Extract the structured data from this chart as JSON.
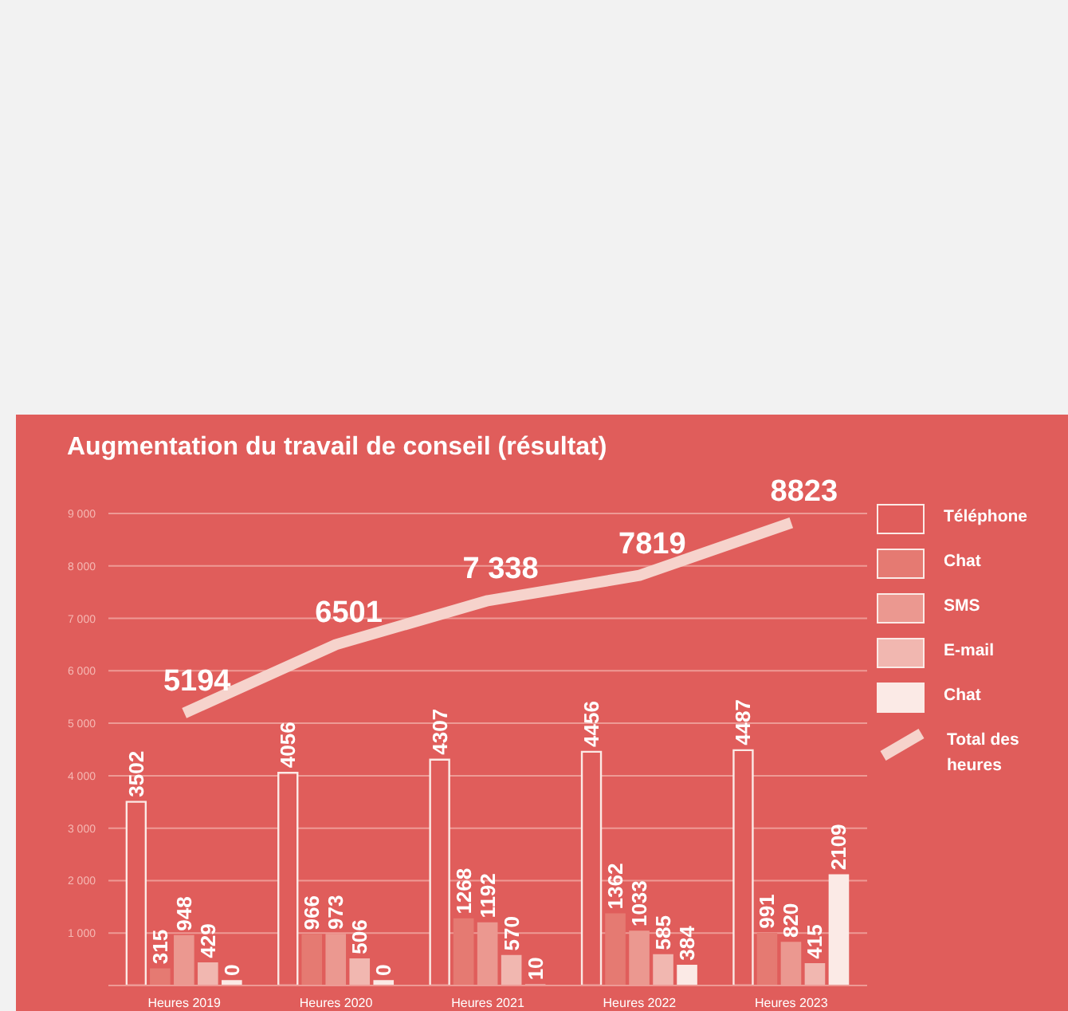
{
  "chart_data": {
    "type": "bar",
    "title": "Augmentation du travail de conseil (résultat)",
    "categories": [
      "Heures 2019",
      "Heures 2020",
      "Heures 2021",
      "Heures 2022",
      "Heures 2023"
    ],
    "series": [
      {
        "name": "Téléphone",
        "color": "#e05d5b",
        "values": [
          3502,
          4056,
          4307,
          4456,
          4487
        ],
        "value_labels": [
          "3502",
          "4056",
          "4307",
          "4456",
          "4487"
        ]
      },
      {
        "name": "Chat",
        "color": "#e57a72",
        "values": [
          315,
          966,
          1268,
          1362,
          991
        ],
        "value_labels": [
          "315",
          "966",
          "1268",
          "1362",
          "991"
        ]
      },
      {
        "name": "SMS",
        "color": "#eb9890",
        "values": [
          948,
          973,
          1192,
          1033,
          820
        ],
        "value_labels": [
          "948",
          "973",
          "1192",
          "1033",
          "820"
        ]
      },
      {
        "name": "E-mail",
        "color": "#f1b7b0",
        "values": [
          429,
          506,
          570,
          585,
          415
        ],
        "value_labels": [
          "429",
          "506",
          "570",
          "585",
          "415"
        ]
      },
      {
        "name": "Chat",
        "color": "#fbeae6",
        "values": [
          0,
          0,
          10,
          384,
          2109
        ],
        "value_labels": [
          "0",
          "0",
          "10",
          "384",
          "2109"
        ]
      },
      {
        "name": "Total des heures",
        "type": "line",
        "color": "#f6d3cc",
        "values": [
          5194,
          6501,
          7338,
          7819,
          8823
        ],
        "value_labels": [
          "5194",
          "6501",
          "7 338",
          "7819",
          "8823"
        ]
      }
    ],
    "ylim": [
      0,
      9000
    ],
    "yticks": [
      {
        "value": 1000,
        "label": "1 000"
      },
      {
        "value": 2000,
        "label": "2 000"
      },
      {
        "value": 3000,
        "label": "3 000"
      },
      {
        "value": 4000,
        "label": "4 000"
      },
      {
        "value": 5000,
        "label": "5 000"
      },
      {
        "value": 6000,
        "label": "6 000"
      },
      {
        "value": 7000,
        "label": "7 000"
      },
      {
        "value": 8000,
        "label": "8 000"
      },
      {
        "value": 9000,
        "label": "9 000"
      }
    ],
    "grid": "y",
    "legend": "right",
    "marker": "none",
    "line_style": "solid"
  }
}
